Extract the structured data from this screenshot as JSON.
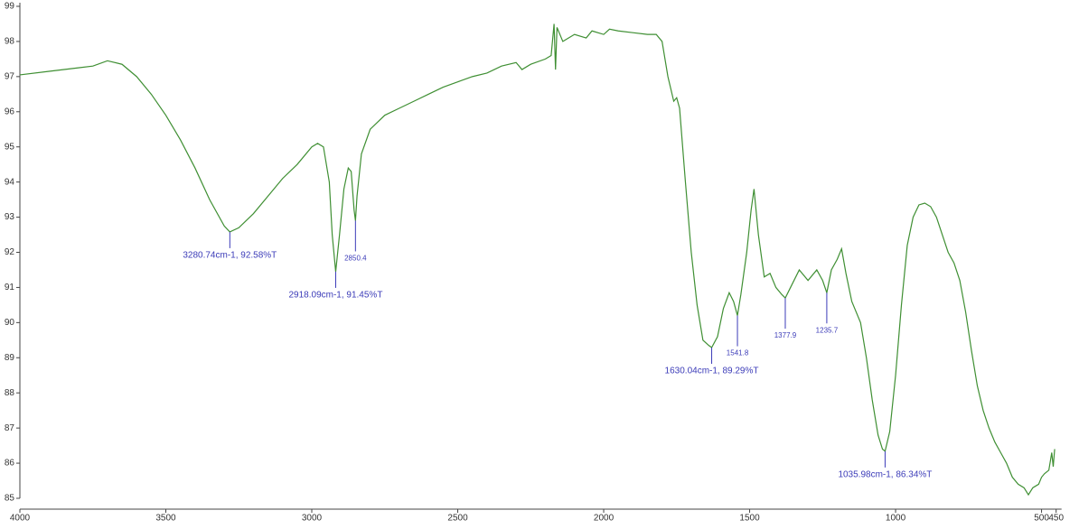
{
  "chart_data": {
    "type": "line",
    "x": [
      4000,
      3900,
      3800,
      3750,
      3700,
      3650,
      3600,
      3550,
      3500,
      3450,
      3400,
      3350,
      3300,
      3280.74,
      3250,
      3200,
      3150,
      3100,
      3050,
      3000,
      2980,
      2960,
      2940,
      2930,
      2918.09,
      2905,
      2890,
      2875,
      2865,
      2855,
      2850.4,
      2845,
      2830,
      2800,
      2750,
      2700,
      2650,
      2600,
      2550,
      2500,
      2450,
      2400,
      2350,
      2300,
      2280,
      2250,
      2200,
      2180,
      2170,
      2165,
      2160,
      2140,
      2100,
      2060,
      2040,
      2000,
      1980,
      1950,
      1900,
      1850,
      1820,
      1800,
      1780,
      1760,
      1750,
      1740,
      1720,
      1700,
      1680,
      1660,
      1640,
      1630.04,
      1610,
      1590,
      1570,
      1555,
      1541.8,
      1530,
      1510,
      1495,
      1485,
      1470,
      1450,
      1430,
      1410,
      1390,
      1377.9,
      1360,
      1330,
      1300,
      1270,
      1250,
      1235.7,
      1220,
      1200,
      1185,
      1170,
      1150,
      1120,
      1100,
      1080,
      1060,
      1045,
      1035.98,
      1020,
      1000,
      980,
      960,
      940,
      920,
      900,
      880,
      860,
      840,
      820,
      800,
      780,
      760,
      740,
      720,
      700,
      680,
      660,
      640,
      620,
      600,
      580,
      560,
      545,
      530,
      510,
      500,
      490,
      475,
      465,
      460,
      455
    ],
    "series": [
      {
        "color": "#3f8f33",
        "values": [
          97.05,
          97.15,
          97.25,
          97.3,
          97.45,
          97.35,
          97.0,
          96.5,
          95.9,
          95.2,
          94.4,
          93.5,
          92.75,
          92.58,
          92.7,
          93.1,
          93.6,
          94.1,
          94.5,
          95.0,
          95.1,
          95.0,
          94.0,
          92.5,
          91.45,
          92.5,
          93.8,
          94.4,
          94.3,
          93.2,
          92.9,
          93.6,
          94.8,
          95.5,
          95.9,
          96.1,
          96.3,
          96.5,
          96.7,
          96.85,
          97.0,
          97.1,
          97.3,
          97.4,
          97.2,
          97.35,
          97.5,
          97.6,
          98.5,
          97.2,
          98.4,
          98.0,
          98.2,
          98.1,
          98.3,
          98.2,
          98.35,
          98.3,
          98.25,
          98.2,
          98.2,
          98.0,
          97.0,
          96.3,
          96.4,
          96.1,
          94.0,
          92.0,
          90.5,
          89.5,
          89.35,
          89.29,
          89.6,
          90.4,
          90.85,
          90.6,
          90.2,
          90.8,
          92.0,
          93.2,
          93.8,
          92.5,
          91.3,
          91.4,
          91.0,
          90.8,
          90.7,
          91.0,
          91.5,
          91.2,
          91.5,
          91.2,
          90.85,
          91.5,
          91.8,
          92.1,
          91.4,
          90.6,
          90.0,
          89.0,
          87.8,
          86.8,
          86.4,
          86.34,
          86.9,
          88.5,
          90.5,
          92.2,
          93.0,
          93.35,
          93.4,
          93.3,
          93.0,
          92.5,
          92.0,
          91.7,
          91.2,
          90.3,
          89.2,
          88.2,
          87.5,
          87.0,
          86.6,
          86.3,
          86.0,
          85.6,
          85.4,
          85.3,
          85.1,
          85.3,
          85.4,
          85.6,
          85.7,
          85.8,
          86.3,
          85.9,
          86.4
        ]
      }
    ],
    "xlim": [
      4000,
      450
    ],
    "ylim": [
      85,
      99
    ],
    "xticks": [
      4000,
      3500,
      3000,
      2500,
      2000,
      1500,
      1000,
      500,
      450
    ],
    "yticks": [
      85,
      86,
      87,
      88,
      89,
      90,
      91,
      92,
      93,
      94,
      95,
      96,
      97,
      98,
      99
    ],
    "annotations": [
      {
        "x": 3280.74,
        "y": 92.58,
        "label": "3280.74cm-1, 92.58%T"
      },
      {
        "x": 2918.09,
        "y": 91.45,
        "label": "2918.09cm-1, 91.45%T"
      },
      {
        "x": 2850.4,
        "y": 92.9,
        "label": "2850.4"
      },
      {
        "x": 1630.04,
        "y": 89.29,
        "label": "1630.04cm-1, 89.29%T"
      },
      {
        "x": 1541.8,
        "y": 90.2,
        "label": "1541.8"
      },
      {
        "x": 1377.9,
        "y": 90.7,
        "label": "1377.9"
      },
      {
        "x": 1235.7,
        "y": 90.85,
        "label": "1235.7"
      },
      {
        "x": 1035.98,
        "y": 86.34,
        "label": "1035.98cm-1, 86.34%T"
      }
    ],
    "annotation_color": "#3b3bb8"
  }
}
